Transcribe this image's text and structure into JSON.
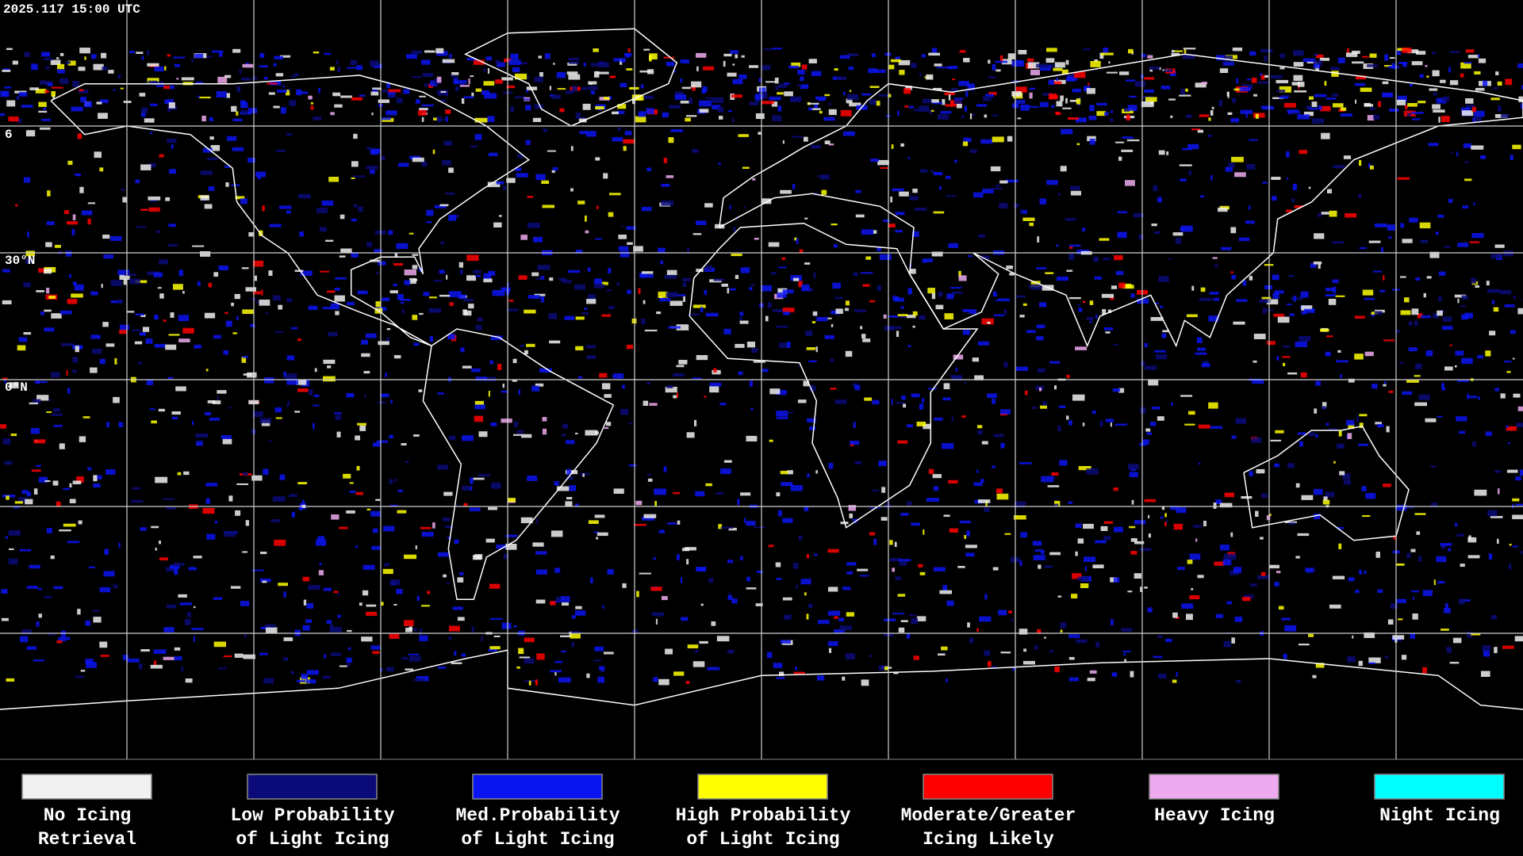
{
  "header": {
    "title": "2025.117 15:00 UTC"
  },
  "map": {
    "lat_labels": [
      "6",
      "30°N",
      "0°N"
    ]
  },
  "legend": [
    {
      "lines": [
        "No Icing",
        "Retrieval"
      ],
      "color": "#f0f0f0"
    },
    {
      "lines": [
        "Low Probability",
        "of Light Icing"
      ],
      "color": "#0a0a78"
    },
    {
      "lines": [
        "Med.Probability",
        "of Light Icing"
      ],
      "color": "#0a14f0"
    },
    {
      "lines": [
        "High Probability",
        "of Light Icing"
      ],
      "color": "#ffff00"
    },
    {
      "lines": [
        "Moderate/Greater",
        "Icing Likely"
      ],
      "color": "#ff0000"
    },
    {
      "lines": [
        "Heavy Icing"
      ],
      "color": "#eeaaee"
    },
    {
      "lines": [
        "Night Icing"
      ],
      "color": "#00ffff"
    }
  ]
}
